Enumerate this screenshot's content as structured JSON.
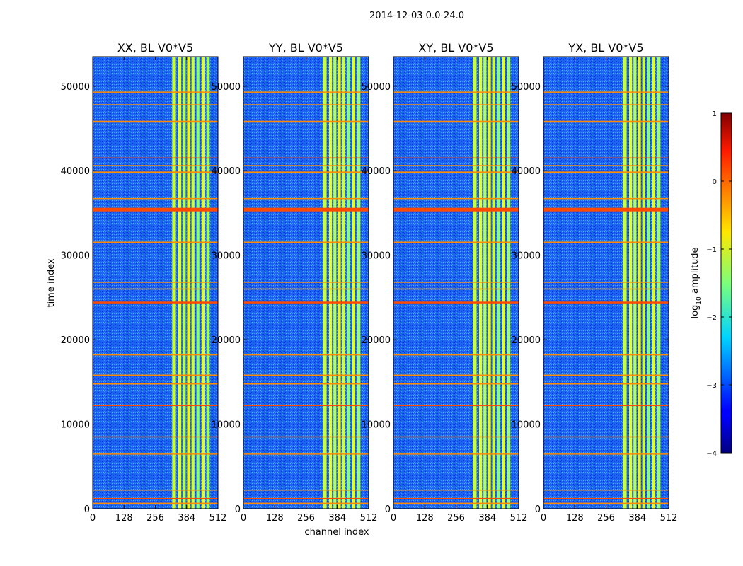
{
  "chart_data": {
    "type": "heatmap",
    "suptitle": "2014-12-03 0.0-24.0",
    "xlabel": "channel index",
    "ylabel": "time index",
    "xlim": [
      0,
      512
    ],
    "ylim": [
      0,
      53500
    ],
    "xticks": [
      "0",
      "128",
      "256",
      "384",
      "512"
    ],
    "xtick_values": [
      0,
      128,
      256,
      384,
      512
    ],
    "yticks": [
      "0",
      "10000",
      "20000",
      "30000",
      "40000",
      "50000"
    ],
    "ytick_values": [
      0,
      10000,
      20000,
      30000,
      40000,
      50000
    ],
    "panels": [
      {
        "title": "XX, BL V0*V5"
      },
      {
        "title": "YY, BL V0*V5"
      },
      {
        "title": "XY, BL V0*V5"
      },
      {
        "title": "YX, BL V0*V5"
      }
    ],
    "colorbar": {
      "label": "log",
      "label_sub": "10",
      "label_rest": " amplitude",
      "range": [
        -4,
        1
      ],
      "ticks": [
        "1",
        "0",
        "−1",
        "−2",
        "−3",
        "−4"
      ],
      "tick_values": [
        1,
        0,
        -1,
        -2,
        -3,
        -4
      ]
    },
    "bright_channel_bands": [
      [
        325,
        340
      ],
      [
        350,
        362
      ],
      [
        368,
        380
      ],
      [
        386,
        398
      ],
      [
        404,
        416
      ],
      [
        424,
        436
      ],
      [
        445,
        457
      ],
      [
        465,
        478
      ]
    ],
    "flagged_time_rows": [
      600,
      1200,
      2200,
      6500,
      8500,
      12200,
      14800,
      15800,
      18200,
      24400,
      26000,
      26800,
      31500,
      35400,
      36700,
      39800,
      40600,
      41500,
      45800,
      47800,
      49300
    ]
  }
}
